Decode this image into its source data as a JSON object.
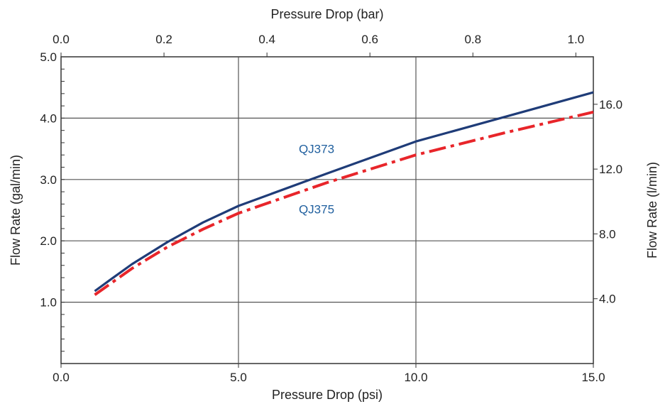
{
  "chart_data": {
    "type": "line",
    "x_bottom": {
      "label": "Pressure Drop (psi)",
      "range": [
        0,
        15
      ],
      "ticks": [
        0,
        5,
        10,
        15
      ],
      "tick_labels": [
        "0.0",
        "5.0",
        "10.0",
        "15.0"
      ]
    },
    "x_top": {
      "label": "Pressure Drop (bar)",
      "range": [
        0,
        1.034
      ],
      "ticks": [
        0,
        0.2,
        0.4,
        0.6,
        0.8,
        1.0
      ],
      "tick_labels": [
        "0.0",
        "0.2",
        "0.4",
        "0.6",
        "0.8",
        "1.0"
      ]
    },
    "y_left": {
      "label": "Flow Rate (gal/min)",
      "range": [
        0,
        5
      ],
      "ticks": [
        1,
        2,
        3,
        4,
        5
      ],
      "tick_labels": [
        "1.0",
        "2.0",
        "3.0",
        "4.0",
        "5.0"
      ]
    },
    "y_right": {
      "label": "Flow Rate (l/min)",
      "range": [
        0,
        18.93
      ],
      "ticks": [
        4,
        8,
        12,
        16
      ],
      "tick_labels": [
        "4.0",
        "8.0",
        "12.0",
        "16.0"
      ]
    },
    "grid": true,
    "series": [
      {
        "name": "QJ373",
        "color": "#1f3c78",
        "style": "solid",
        "x": [
          0.95,
          1.4,
          2.0,
          3.0,
          4.0,
          5.0,
          7.5,
          10.0,
          12.5,
          15.0
        ],
        "y": [
          1.18,
          1.37,
          1.62,
          1.98,
          2.3,
          2.57,
          3.1,
          3.62,
          4.02,
          4.42
        ]
      },
      {
        "name": "QJ375",
        "color": "#e8252a",
        "style": "dash-dot",
        "x": [
          0.95,
          2.0,
          3.0,
          4.0,
          5.0,
          7.5,
          10.0,
          12.5,
          15.0
        ],
        "y": [
          1.12,
          1.55,
          1.9,
          2.19,
          2.45,
          2.95,
          3.4,
          3.76,
          4.1
        ]
      }
    ],
    "annotations": [
      {
        "text": "QJ373",
        "x": 7.2,
        "y": 3.5,
        "color": "#1f5f9e"
      },
      {
        "text": "QJ375",
        "x": 7.2,
        "y": 2.52,
        "color": "#1f5f9e"
      }
    ]
  }
}
